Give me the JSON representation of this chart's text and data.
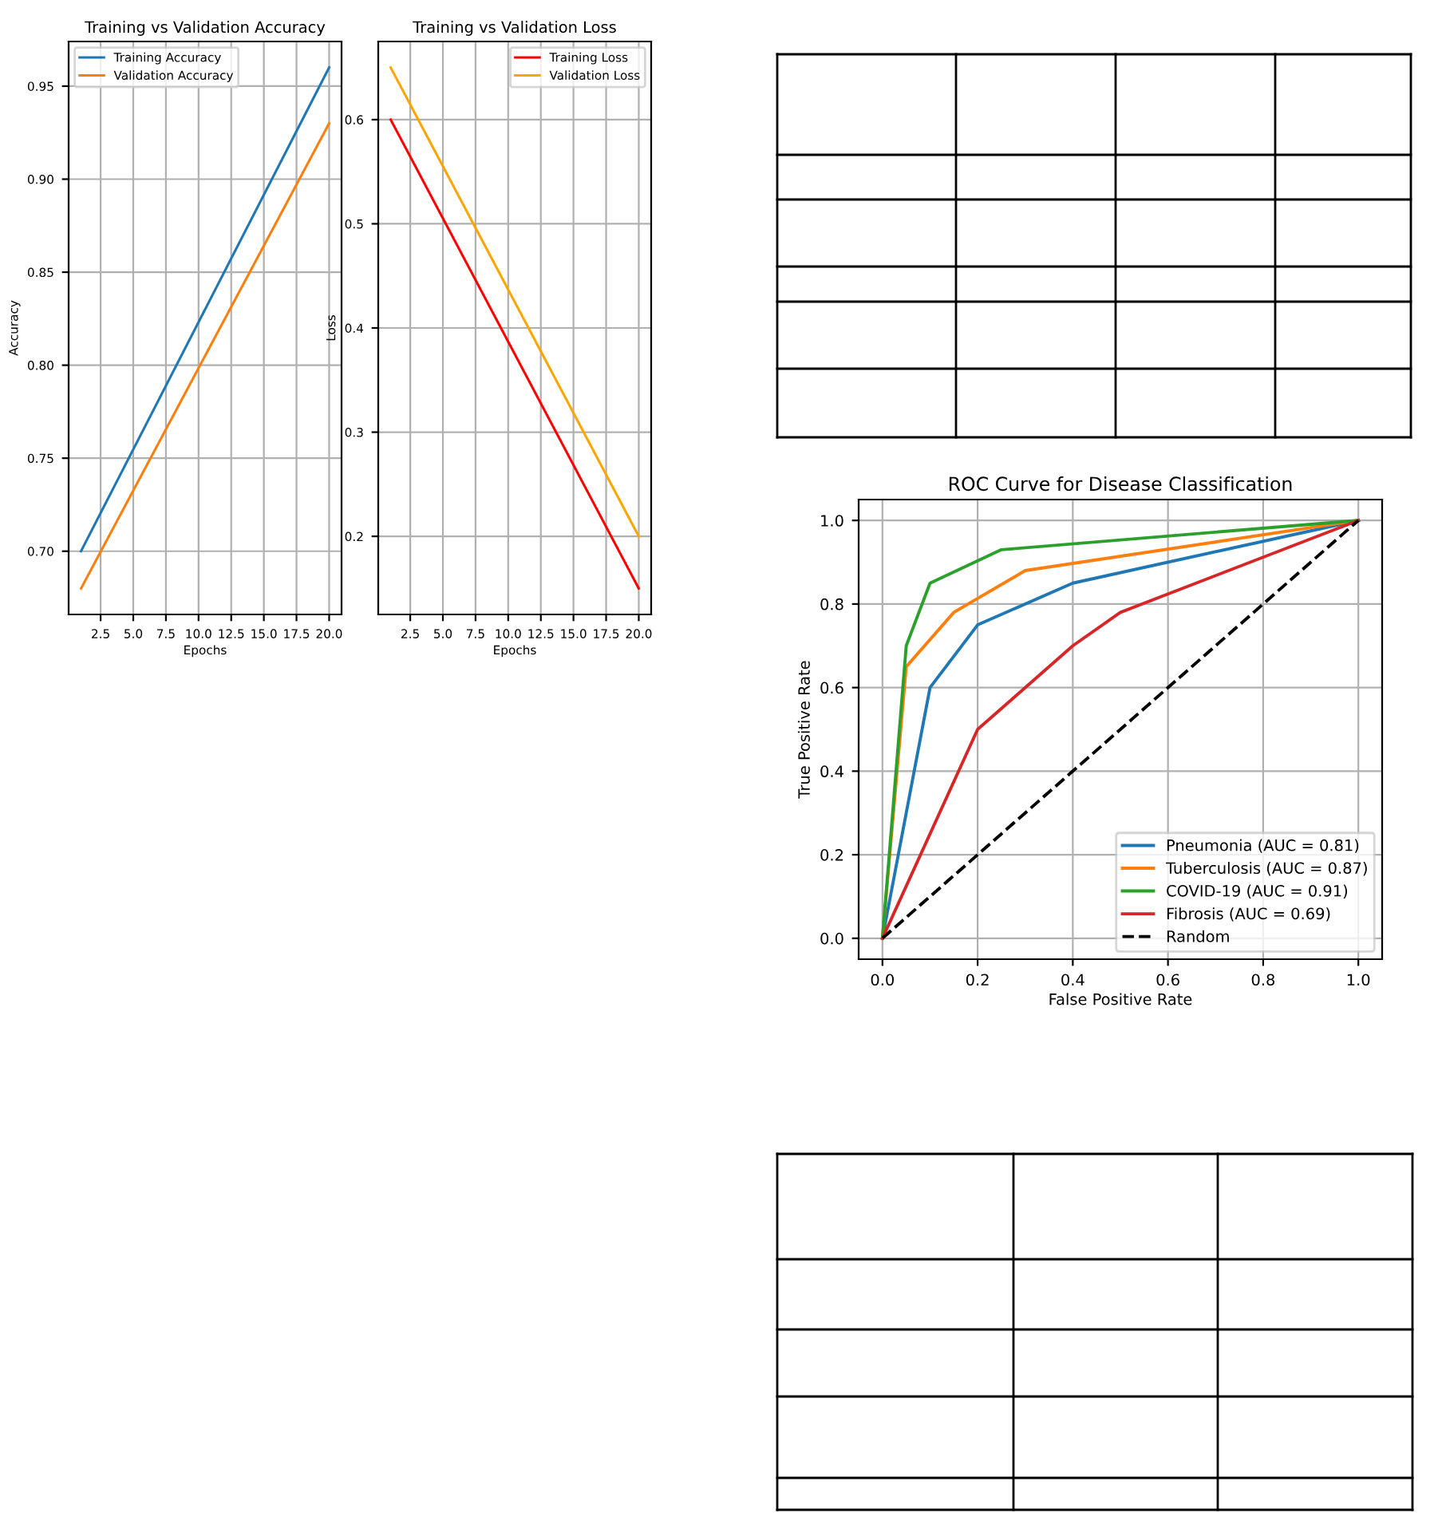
{
  "chart_data": [
    {
      "type": "line",
      "title": "Training vs Validation Accuracy",
      "xlabel": "Epochs",
      "ylabel": "Accuracy",
      "series": [
        {
          "name": "Training Accuracy",
          "color": "#1f77b4",
          "x": [
            1,
            20
          ],
          "values": [
            0.7,
            0.96
          ]
        },
        {
          "name": "Validation Accuracy",
          "color": "#ff7f0e",
          "x": [
            1,
            20
          ],
          "values": [
            0.68,
            0.93
          ]
        }
      ],
      "xlim": [
        0.05,
        20.95
      ],
      "ylim": [
        0.666,
        0.974
      ],
      "xticks": [
        2.5,
        {
          "value": 5,
          "label": "5.0"
        },
        7.5,
        {
          "value": 10,
          "label": "10.0"
        },
        12.5,
        {
          "value": 15,
          "label": "15.0"
        },
        17.5,
        {
          "value": 20,
          "label": "20.0"
        }
      ],
      "yticks": [
        {
          "value": 0.7,
          "label": "0.70"
        },
        0.75,
        {
          "value": 0.8,
          "label": "0.80"
        },
        0.85,
        {
          "value": 0.9,
          "label": "0.90"
        },
        0.95
      ],
      "grid": true,
      "legend": "top left"
    },
    {
      "type": "line",
      "title": "Training vs Validation Loss",
      "xlabel": "Epochs",
      "ylabel": "Loss",
      "series": [
        {
          "name": "Training Loss",
          "color": "#ff0000",
          "x": [
            1,
            20
          ],
          "values": [
            0.6,
            0.15
          ]
        },
        {
          "name": "Validation Loss",
          "color": "#ffa500",
          "x": [
            1,
            20
          ],
          "values": [
            0.65,
            0.2
          ]
        }
      ],
      "xlim": [
        0.05,
        20.95
      ],
      "ylim": [
        0.125,
        0.675
      ],
      "xticks": [
        2.5,
        {
          "value": 5,
          "label": "5.0"
        },
        7.5,
        {
          "value": 10,
          "label": "10.0"
        },
        12.5,
        {
          "value": 15,
          "label": "15.0"
        },
        17.5,
        {
          "value": 20,
          "label": "20.0"
        }
      ],
      "yticks": [
        0.2,
        0.3,
        0.4,
        0.5,
        0.6
      ],
      "grid": true,
      "legend": "top right"
    },
    {
      "type": "line",
      "title": "ROC Curve for Disease Classification",
      "xlabel": "False Positive Rate",
      "ylabel": "True Positive Rate",
      "series": [
        {
          "name": "Pneumonia (AUC = 0.81)",
          "color": "#1f77b4",
          "x": [
            0,
            0.1,
            0.2,
            0.4,
            1
          ],
          "values": [
            0,
            0.6,
            0.75,
            0.85,
            1
          ]
        },
        {
          "name": "Tuberculosis (AUC = 0.87)",
          "color": "#ff7f0e",
          "x": [
            0,
            0.05,
            0.15,
            0.3,
            1
          ],
          "values": [
            0,
            0.65,
            0.78,
            0.88,
            1
          ]
        },
        {
          "name": "COVID-19 (AUC = 0.91)",
          "color": "#2ca02c",
          "x": [
            0,
            0.05,
            0.1,
            0.25,
            1
          ],
          "values": [
            0,
            0.7,
            0.85,
            0.93,
            1
          ]
        },
        {
          "name": "Fibrosis (AUC = 0.69)",
          "color": "#d62728",
          "x": [
            0,
            0.2,
            0.4,
            0.5,
            1
          ],
          "values": [
            0,
            0.5,
            0.7,
            0.78,
            1
          ]
        },
        {
          "name": "Random",
          "color": "#000000",
          "x": [
            0,
            1
          ],
          "values": [
            0,
            1
          ],
          "line_style": "dashed"
        }
      ],
      "xlim": [
        -0.05,
        1.05
      ],
      "ylim": [
        -0.05,
        1.05
      ],
      "xticks": [
        {
          "value": 0,
          "label": "0.0"
        },
        0.2,
        0.4,
        0.6,
        0.8,
        {
          "value": 1,
          "label": "1.0"
        }
      ],
      "yticks": [
        {
          "value": 0,
          "label": "0.0"
        },
        0.2,
        0.4,
        0.6,
        0.8,
        {
          "value": 1,
          "label": "1.0"
        }
      ],
      "grid": true,
      "legend": "bottom right"
    }
  ]
}
